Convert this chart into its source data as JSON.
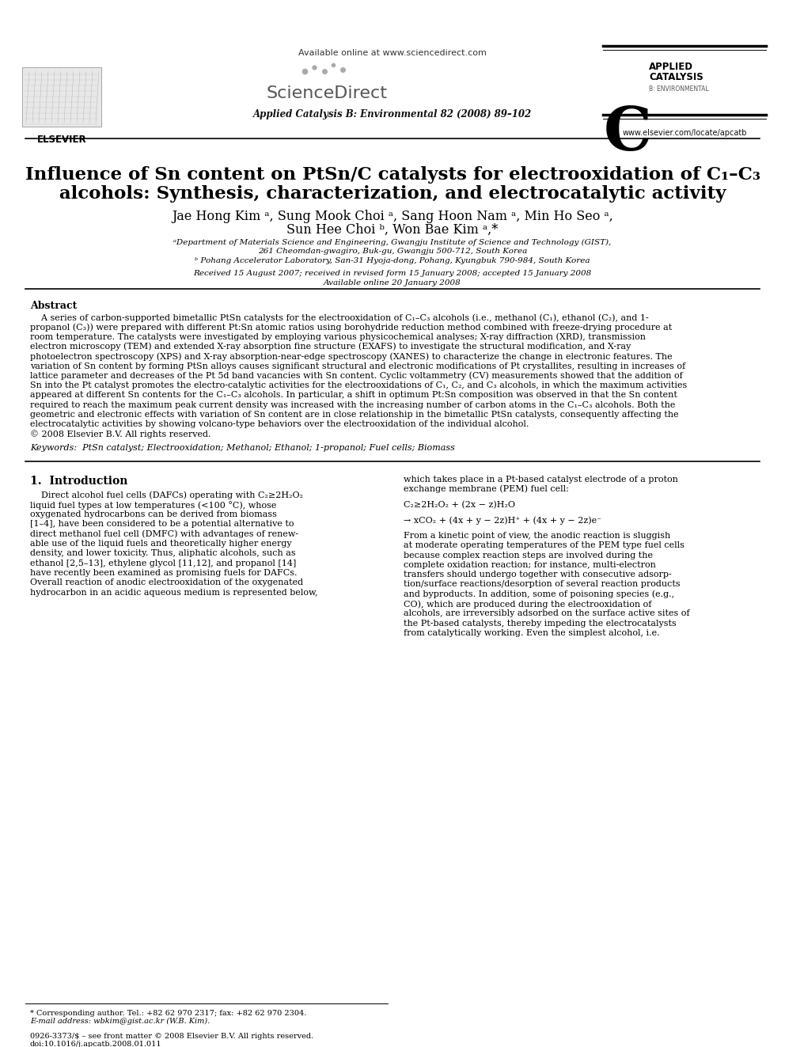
{
  "bg_color": "#ffffff",
  "available_online": "Available online at www.sciencedirect.com",
  "journal": "Applied Catalysis B: Environmental 82 (2008) 89–102",
  "elsevier_url": "www.elsevier.com/locate/apcatb",
  "title_line1": "Influence of Sn content on PtSn/C catalysts for electrooxidation of C₁–C₃",
  "title_line2": "alcohols: Synthesis, characterization, and electrocatalytic activity",
  "authors_line1": "Jae Hong Kim ᵃ, Sung Mook Choi ᵃ, Sang Hoon Nam ᵃ, Min Ho Seo ᵃ,",
  "authors_line2": "Sun Hee Choi ᵇ, Won Bae Kim ᵃ,*",
  "affil_a": "ᵃDepartment of Materials Science and Engineering, Gwangju Institute of Science and Technology (GIST),",
  "affil_a2": "261 Cheomdan-gwagiro, Buk-gu, Gwangju 500-712, South Korea",
  "affil_b": "ᵇ Pohang Accelerator Laboratory, San-31 Hyoja-dong, Pohang, Kyungbuk 790-984, South Korea",
  "received": "Received 15 August 2007; received in revised form 15 January 2008; accepted 15 January 2008",
  "available": "Available online 20 January 2008",
  "abstract_title": "Abstract",
  "abstract_indent": "    A series of carbon-supported bimetallic PtSn catalysts for the electrooxidation of C₁–C₃ alcohols (i.e., methanol (C₁), ethanol (C₂), and 1-",
  "abstract_lines": [
    "    A series of carbon-supported bimetallic PtSn catalysts for the electrooxidation of C₁–C₃ alcohols (i.e., methanol (C₁), ethanol (C₂), and 1-",
    "propanol (C₃)) were prepared with different Pt:Sn atomic ratios using borohydride reduction method combined with freeze-drying procedure at",
    "room temperature. The catalysts were investigated by employing various physicochemical analyses; X-ray diffraction (XRD), transmission",
    "electron microscopy (TEM) and extended X-ray absorption fine structure (EXAFS) to investigate the structural modification, and X-ray",
    "photoelectron spectroscopy (XPS) and X-ray absorption-near-edge spectroscopy (XANES) to characterize the change in electronic features. The",
    "variation of Sn content by forming PtSn alloys causes significant structural and electronic modifications of Pt crystallites, resulting in increases of",
    "lattice parameter and decreases of the Pt 5d band vacancies with Sn content. Cyclic voltammetry (CV) measurements showed that the addition of",
    "Sn into the Pt catalyst promotes the electro-catalytic activities for the electrooxidations of C₁, C₂, and C₃ alcohols, in which the maximum activities",
    "appeared at different Sn contents for the C₁–C₃ alcohols. In particular, a shift in optimum Pt:Sn composition was observed in that the Sn content",
    "required to reach the maximum peak current density was increased with the increasing number of carbon atoms in the C₁–C₃ alcohols. Both the",
    "geometric and electronic effects with variation of Sn content are in close relationship in the bimetallic PtSn catalysts, consequently affecting the",
    "electrocatalytic activities by showing volcano-type behaviors over the electrooxidation of the individual alcohol."
  ],
  "copyright": "© 2008 Elsevier B.V. All rights reserved.",
  "keywords": "Keywords:  PtSn catalyst; Electrooxidation; Methanol; Ethanol; 1-propanol; Fuel cells; Biomass",
  "intro_title": "1.  Introduction",
  "intro_lines": [
    "    Direct alcohol fuel cells (DAFCs) operating with C₂≥2H₂O₂",
    "liquid fuel types at low temperatures (<100 °C), whose",
    "oxygenated hydrocarbons can be derived from biomass",
    "[1–4], have been considered to be a potential alternative to",
    "direct methanol fuel cell (DMFC) with advantages of renew-",
    "able use of the liquid fuels and theoretically higher energy",
    "density, and lower toxicity. Thus, aliphatic alcohols, such as",
    "ethanol [2,5–13], ethylene glycol [11,12], and propanol [14]",
    "have recently been examined as promising fuels for DAFCs.",
    "Overall reaction of anodic electrooxidation of the oxygenated",
    "hydrocarbon in an acidic aqueous medium is represented below,"
  ],
  "right_lines": [
    "which takes place in a Pt-based catalyst electrode of a proton",
    "exchange membrane (PEM) fuel cell:",
    "",
    "C₂≥2H₂O₂ + (2x − z)H₂O",
    "",
    "→ xCO₂ + (4x + y − 2z)H⁺ + (4x + y − 2z)e⁻",
    "",
    "From a kinetic point of view, the anodic reaction is sluggish",
    "at moderate operating temperatures of the PEM type fuel cells",
    "because complex reaction steps are involved during the",
    "complete oxidation reaction; for instance, multi-electron",
    "transfers should undergo together with consecutive adsorp-",
    "tion/surface reactions/desorption of several reaction products",
    "and byproducts. In addition, some of poisoning species (e.g.,",
    "CO), which are produced during the electrooxidation of",
    "alcohols, are irreversibly adsorbed on the surface active sites of",
    "the Pt-based catalysts, thereby impeding the electrocatalysts",
    "from catalytically working. Even the simplest alcohol, i.e."
  ],
  "footnote1": "* Corresponding author. Tel.: +82 62 970 2317; fax: +82 62 970 2304.",
  "footnote2": "E-mail address: wbkim@gist.ac.kr (W.B. Kim).",
  "issn": "0926-3373/$ – see front matter © 2008 Elsevier B.V. All rights reserved.",
  "doi": "doi:10.1016/j.apcatb.2008.01.011"
}
